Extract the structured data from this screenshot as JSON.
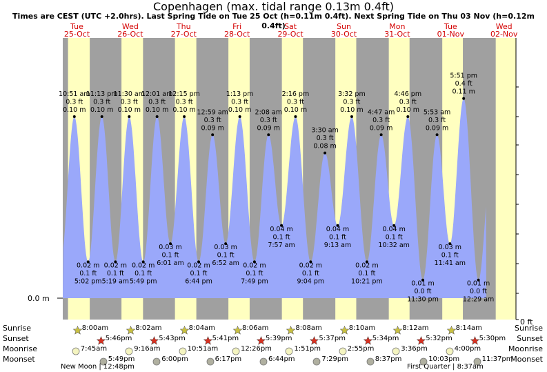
{
  "page": {
    "title": "Copenhagen (max. tidal range 0.13m 0.4ft)",
    "subtitle": "Times are CEST (UTC +2.0hrs). Last Spring Tide on Tue 25 Oct (h=0.11m 0.4ft). Next Spring Tide on Thu 03 Nov (h=0.12m 0.4ft)"
  },
  "colors": {
    "night": "#a0a0a0",
    "day": "#ffffc0",
    "water": "#9aa8fa",
    "sun": "#c8c040",
    "sunset": "#d83020",
    "moon": "#f4f4c0",
    "moonset": "#b0b0a0",
    "daylabel": "#d40000"
  },
  "days": [
    {
      "name": "Tue",
      "date": "25-Oct"
    },
    {
      "name": "Wed",
      "date": "26-Oct"
    },
    {
      "name": "Thu",
      "date": "27-Oct"
    },
    {
      "name": "Fri",
      "date": "28-Oct"
    },
    {
      "name": "Sat",
      "date": "29-Oct"
    },
    {
      "name": "Sun",
      "date": "30-Oct"
    },
    {
      "name": "Mon",
      "date": "31-Oct"
    },
    {
      "name": "Tue",
      "date": "01-Nov"
    },
    {
      "name": "Wed",
      "date": "02-Nov"
    }
  ],
  "axis": {
    "left_label": "0.0 m",
    "right_label": "0 ft"
  },
  "chart_data": {
    "type": "area",
    "title": "Copenhagen (max. tidal range 0.13m 0.4ft)",
    "x_range": [
      "2022-10-24 17:00",
      "2022-11-02 05:00"
    ],
    "ylim": [
      0,
      0.13
    ],
    "series": [
      {
        "points": [
          {
            "t": "2022-10-25 10:51",
            "type": "high",
            "h_m": 0.1,
            "h_ft": "0.3 ft",
            "time": "10:51 am",
            "label_m": "0.10 m"
          },
          {
            "t": "2022-10-25 17:02",
            "type": "low",
            "h_m": 0.02,
            "h_ft": "0.1 ft",
            "time": "5:02 pm",
            "label_m": "0.02 m"
          },
          {
            "t": "2022-10-25 23:13",
            "type": "high",
            "h_m": 0.1,
            "h_ft": "0.3 ft",
            "time": "11:13 pm",
            "label_m": "0.10 m"
          },
          {
            "t": "2022-10-26 05:19",
            "type": "low",
            "h_m": 0.02,
            "h_ft": "0.1 ft",
            "time": "5:19 am",
            "label_m": "0.02 m"
          },
          {
            "t": "2022-10-26 11:30",
            "type": "high",
            "h_m": 0.1,
            "h_ft": "0.3 ft",
            "time": "11:30 am",
            "label_m": "0.10 m"
          },
          {
            "t": "2022-10-26 17:49",
            "type": "low",
            "h_m": 0.02,
            "h_ft": "0.1 ft",
            "time": "5:49 pm",
            "label_m": "0.02 m"
          },
          {
            "t": "2022-10-27 00:01",
            "type": "high",
            "h_m": 0.1,
            "h_ft": "0.3 ft",
            "time": "12:01 am",
            "label_m": "0.10 m"
          },
          {
            "t": "2022-10-27 06:01",
            "type": "low",
            "h_m": 0.03,
            "h_ft": "0.1 ft",
            "time": "6:01 am",
            "label_m": "0.03 m"
          },
          {
            "t": "2022-10-27 12:15",
            "type": "high",
            "h_m": 0.1,
            "h_ft": "0.3 ft",
            "time": "12:15 pm",
            "label_m": "0.10 m"
          },
          {
            "t": "2022-10-27 18:44",
            "type": "low",
            "h_m": 0.02,
            "h_ft": "0.1 ft",
            "time": "6:44 pm",
            "label_m": "0.02 m"
          },
          {
            "t": "2022-10-28 00:59",
            "type": "high",
            "h_m": 0.09,
            "h_ft": "0.3 ft",
            "time": "12:59 am",
            "label_m": "0.09 m"
          },
          {
            "t": "2022-10-28 06:52",
            "type": "low",
            "h_m": 0.03,
            "h_ft": "0.1 ft",
            "time": "6:52 am",
            "label_m": "0.03 m"
          },
          {
            "t": "2022-10-28 13:13",
            "type": "high",
            "h_m": 0.1,
            "h_ft": "0.3 ft",
            "time": "1:13 pm",
            "label_m": "0.10 m"
          },
          {
            "t": "2022-10-28 19:49",
            "type": "low",
            "h_m": 0.02,
            "h_ft": "0.1 ft",
            "time": "7:49 pm",
            "label_m": "0.02 m"
          },
          {
            "t": "2022-10-29 02:08",
            "type": "high",
            "h_m": 0.09,
            "h_ft": "0.3 ft",
            "time": "2:08 am",
            "label_m": "0.09 m"
          },
          {
            "t": "2022-10-29 07:57",
            "type": "low",
            "h_m": 0.04,
            "h_ft": "0.1 ft",
            "time": "7:57 am",
            "label_m": "0.04 m"
          },
          {
            "t": "2022-10-29 14:16",
            "type": "high",
            "h_m": 0.1,
            "h_ft": "0.3 ft",
            "time": "2:16 pm",
            "label_m": "0.10 m"
          },
          {
            "t": "2022-10-29 21:04",
            "type": "low",
            "h_m": 0.02,
            "h_ft": "0.1 ft",
            "time": "9:04 pm",
            "label_m": "0.02 m"
          },
          {
            "t": "2022-10-30 03:30",
            "type": "high",
            "h_m": 0.08,
            "h_ft": "0.3 ft",
            "time": "3:30 am",
            "label_m": "0.08 m"
          },
          {
            "t": "2022-10-30 09:13",
            "type": "low",
            "h_m": 0.04,
            "h_ft": "0.1 ft",
            "time": "9:13 am",
            "label_m": "0.04 m"
          },
          {
            "t": "2022-10-30 15:32",
            "type": "high",
            "h_m": 0.1,
            "h_ft": "0.3 ft",
            "time": "3:32 pm",
            "label_m": "0.10 m"
          },
          {
            "t": "2022-10-30 22:21",
            "type": "low",
            "h_m": 0.02,
            "h_ft": "0.1 ft",
            "time": "10:21 pm",
            "label_m": "0.02 m"
          },
          {
            "t": "2022-10-31 04:47",
            "type": "high",
            "h_m": 0.09,
            "h_ft": "0.3 ft",
            "time": "4:47 am",
            "label_m": "0.09 m"
          },
          {
            "t": "2022-10-31 10:32",
            "type": "low",
            "h_m": 0.04,
            "h_ft": "0.1 ft",
            "time": "10:32 am",
            "label_m": "0.04 m"
          },
          {
            "t": "2022-10-31 16:46",
            "type": "high",
            "h_m": 0.1,
            "h_ft": "0.3 ft",
            "time": "4:46 pm",
            "label_m": "0.10 m"
          },
          {
            "t": "2022-10-31 23:30",
            "type": "low",
            "h_m": 0.01,
            "h_ft": "0.0 ft",
            "time": "11:30 pm",
            "label_m": "0.01 m"
          },
          {
            "t": "2022-11-01 05:53",
            "type": "high",
            "h_m": 0.09,
            "h_ft": "0.3 ft",
            "time": "5:53 am",
            "label_m": "0.09 m"
          },
          {
            "t": "2022-11-01 11:41",
            "type": "low",
            "h_m": 0.03,
            "h_ft": "0.1 ft",
            "time": "11:41 am",
            "label_m": "0.03 m"
          },
          {
            "t": "2022-11-01 17:51",
            "type": "high",
            "h_m": 0.11,
            "h_ft": "0.4 ft",
            "time": "5:51 pm",
            "label_m": "0.11 m"
          },
          {
            "t": "2022-11-02 00:29",
            "type": "low",
            "h_m": 0.01,
            "h_ft": "0.0 ft",
            "time": "12:29 am",
            "label_m": "0.01 m"
          }
        ]
      }
    ],
    "grid": false
  },
  "rows": {
    "left": [
      "Sunrise",
      "Sunset",
      "Moonrise",
      "Moonset"
    ],
    "right": [
      "Sunrise",
      "Sunset",
      "Moonrise",
      "Moonset"
    ]
  },
  "sunrise": [
    "8:00am",
    "8:02am",
    "8:04am",
    "8:06am",
    "8:08am",
    "8:10am",
    "8:12am",
    "8:14am"
  ],
  "sunset": [
    "5:46pm",
    "5:43pm",
    "5:41pm",
    "5:39pm",
    "5:37pm",
    "5:34pm",
    "5:32pm",
    "5:30pm"
  ],
  "moonrise": [
    "7:45am",
    "9:16am",
    "10:51am",
    "12:26pm",
    "1:51pm",
    "2:55pm",
    "3:36pm",
    "4:00pm"
  ],
  "moonset": [
    "5:49pm",
    "6:00pm",
    "6:17pm",
    "6:44pm",
    "7:29pm",
    "8:37pm",
    "10:03pm",
    "11:37pm"
  ],
  "moon_phases": {
    "new_moon": "New Moon | 12:48pm",
    "first_quarter": "First Quarter | 8:37am"
  }
}
